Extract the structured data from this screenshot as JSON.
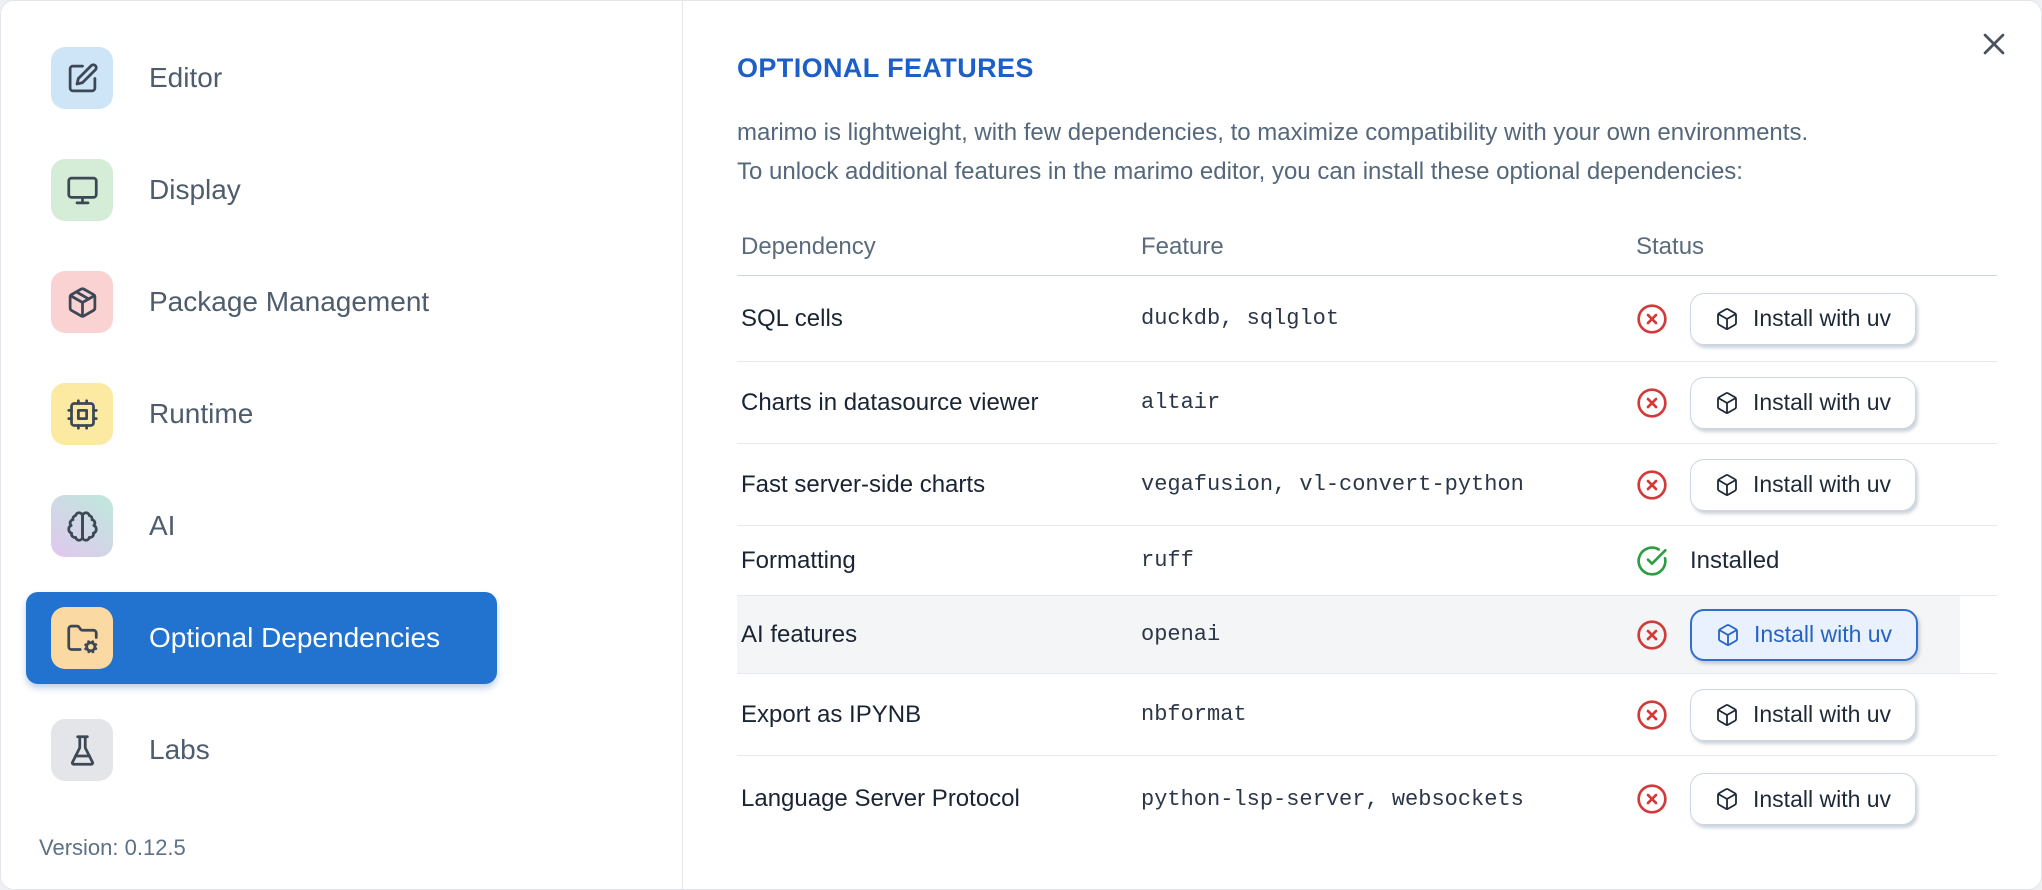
{
  "dialog": {
    "close_icon": "x-icon"
  },
  "sidebar": {
    "items": [
      {
        "label": "Editor",
        "icon": "square-pen-icon",
        "tile_bg": "#cde5f7",
        "selected": false
      },
      {
        "label": "Display",
        "icon": "monitor-icon",
        "tile_bg": "#d5ecd6",
        "selected": false
      },
      {
        "label": "Package Management",
        "icon": "package-icon",
        "tile_bg": "#fbd2d2",
        "selected": false
      },
      {
        "label": "Runtime",
        "icon": "cpu-icon",
        "tile_bg": "#fce9a2",
        "selected": false
      },
      {
        "label": "AI",
        "icon": "brain-icon",
        "tile_bg": "#bfe9dc",
        "tile_bg2": "#e0c7ee",
        "selected": false
      },
      {
        "label": "Optional Dependencies",
        "icon": "folder-cog-icon",
        "tile_bg": "#fbd9a3",
        "selected": true
      },
      {
        "label": "Labs",
        "icon": "flask-icon",
        "tile_bg": "#e4e5e8",
        "selected": false
      }
    ],
    "version": "Version: 0.12.5"
  },
  "panel": {
    "title": "OPTIONAL FEATURES",
    "description_lines": [
      "marimo is lightweight, with few dependencies, to maximize compatibility with your own environments.",
      "To unlock additional features in the marimo editor, you can install these optional dependencies:"
    ],
    "table": {
      "columns": [
        "Dependency",
        "Feature",
        "Status"
      ],
      "install_button_label": "Install with uv",
      "install_button_icon": "box-icon",
      "not_installed_icon": "circle-x-icon",
      "installed_icon": "circle-check-icon",
      "installed_label": "Installed",
      "rows": [
        {
          "dependency": "SQL cells",
          "feature": "duckdb, sqlglot",
          "installed": false,
          "highlighted": false,
          "button_focused": false
        },
        {
          "dependency": "Charts in datasource viewer",
          "feature": "altair",
          "installed": false,
          "highlighted": false,
          "button_focused": false
        },
        {
          "dependency": "Fast server-side charts",
          "feature": "vegafusion, vl-convert-python",
          "installed": false,
          "highlighted": false,
          "button_focused": false
        },
        {
          "dependency": "Formatting",
          "feature": "ruff",
          "installed": true,
          "highlighted": false,
          "button_focused": false
        },
        {
          "dependency": "AI features",
          "feature": "openai",
          "installed": false,
          "highlighted": true,
          "button_focused": true
        },
        {
          "dependency": "Export as IPYNB",
          "feature": "nbformat",
          "installed": false,
          "highlighted": false,
          "button_focused": false
        },
        {
          "dependency": "Language Server Protocol",
          "feature": "python-lsp-server, websockets",
          "installed": false,
          "highlighted": false,
          "button_focused": false
        }
      ]
    }
  },
  "colors": {
    "accent_blue": "#2272d0",
    "heading_blue": "#1c5fc8",
    "status_red": "#d33a3a",
    "status_green": "#2e9e44",
    "focused_button_bg": "#e8f1fd",
    "focused_button_border": "#2e6fd0"
  }
}
